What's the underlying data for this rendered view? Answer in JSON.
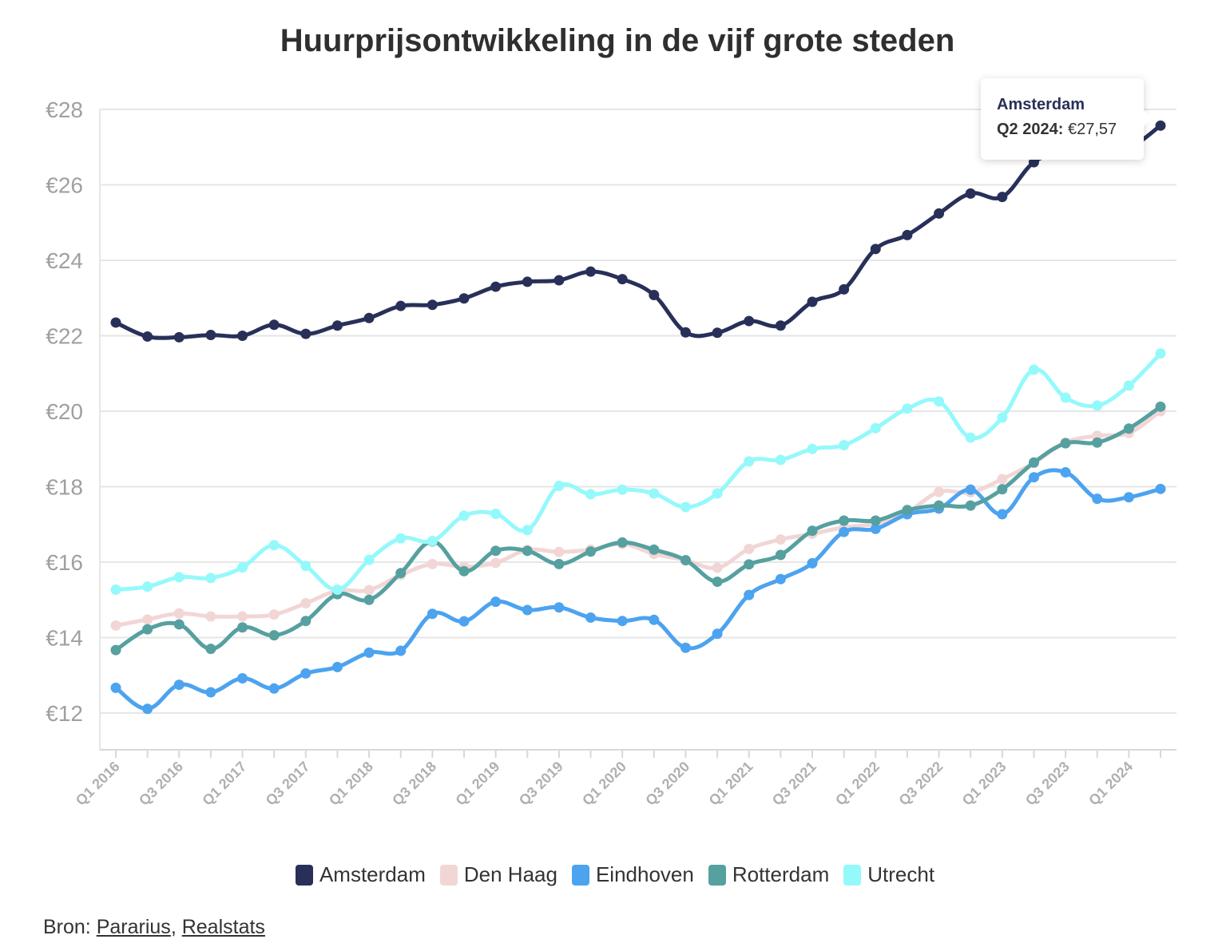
{
  "source": {
    "label": "Bron:",
    "links": [
      "Pararius",
      "Realstats"
    ],
    "separator": ","
  },
  "tooltip": {
    "series": "Amsterdam",
    "period": "Q2 2024:",
    "value": "€27,57"
  },
  "chart_data": {
    "type": "line",
    "title": "Huurprijsontwikkeling in de vijf grote steden",
    "xlabel": "",
    "ylabel": "",
    "ylim": [
      11,
      28
    ],
    "yticks": [
      12,
      14,
      16,
      18,
      20,
      22,
      24,
      26,
      28
    ],
    "ytick_labels": [
      "€12",
      "€14",
      "€16",
      "€18",
      "€20",
      "€22",
      "€24",
      "€26",
      "€28"
    ],
    "grid": true,
    "legend_position": "bottom",
    "categories": [
      "Q1 2016",
      "Q2 2016",
      "Q3 2016",
      "Q4 2016",
      "Q1 2017",
      "Q2 2017",
      "Q3 2017",
      "Q4 2017",
      "Q1 2018",
      "Q2 2018",
      "Q3 2018",
      "Q4 2018",
      "Q1 2019",
      "Q2 2019",
      "Q3 2019",
      "Q4 2019",
      "Q1 2020",
      "Q2 2020",
      "Q3 2020",
      "Q4 2020",
      "Q1 2021",
      "Q2 2021",
      "Q3 2021",
      "Q4 2021",
      "Q1 2022",
      "Q2 2022",
      "Q3 2022",
      "Q4 2022",
      "Q1 2023",
      "Q2 2023",
      "Q3 2023",
      "Q4 2023",
      "Q1 2024",
      "Q2 2024"
    ],
    "xtick_labels": [
      "Q1 2016",
      "Q3 2016",
      "Q1 2017",
      "Q3 2017",
      "Q1 2018",
      "Q3 2018",
      "Q1 2019",
      "Q3 2019",
      "Q1 2020",
      "Q3 2020",
      "Q1 2021",
      "Q3 2021",
      "Q1 2022",
      "Q3 2022",
      "Q1 2023",
      "Q3 2023",
      "Q1 2024"
    ],
    "series": [
      {
        "name": "Amsterdam",
        "color": "#283059",
        "values": [
          22.35,
          21.98,
          21.96,
          22.02,
          22.0,
          22.29,
          22.05,
          22.27,
          22.47,
          22.79,
          22.82,
          22.99,
          23.3,
          23.43,
          23.47,
          23.7,
          23.5,
          23.08,
          22.09,
          22.08,
          22.39,
          22.27,
          22.9,
          23.23,
          24.3,
          24.67,
          25.24,
          25.77,
          25.68,
          26.6,
          26.9,
          27.1,
          27.0,
          27.57
        ]
      },
      {
        "name": "Den Haag",
        "color": "#f2d6d6",
        "values": [
          14.32,
          14.48,
          14.64,
          14.56,
          14.56,
          14.61,
          14.91,
          15.24,
          15.26,
          15.66,
          15.95,
          15.88,
          15.98,
          16.32,
          16.27,
          16.33,
          16.48,
          16.22,
          16.05,
          15.85,
          16.35,
          16.6,
          16.75,
          16.92,
          17.02,
          17.32,
          17.86,
          17.85,
          18.2,
          18.63,
          19.17,
          19.35,
          19.42,
          20.0
        ]
      },
      {
        "name": "Eindhoven",
        "color": "#4ca3ef",
        "values": [
          12.67,
          12.11,
          12.75,
          12.55,
          12.92,
          12.65,
          13.05,
          13.22,
          13.6,
          13.65,
          14.63,
          14.43,
          14.95,
          14.73,
          14.8,
          14.53,
          14.44,
          14.47,
          13.73,
          14.1,
          15.13,
          15.55,
          15.97,
          16.8,
          16.88,
          17.27,
          17.42,
          17.92,
          17.27,
          18.25,
          18.38,
          17.68,
          17.72,
          17.94
        ]
      },
      {
        "name": "Rotterdam",
        "color": "#56a0a0",
        "values": [
          13.67,
          14.22,
          14.35,
          13.7,
          14.27,
          14.06,
          14.44,
          15.15,
          15.0,
          15.71,
          16.55,
          15.76,
          16.3,
          16.3,
          15.95,
          16.28,
          16.52,
          16.33,
          16.05,
          15.48,
          15.94,
          16.19,
          16.83,
          17.1,
          17.1,
          17.38,
          17.5,
          17.5,
          17.93,
          18.64,
          19.15,
          19.17,
          19.54,
          20.12
        ]
      },
      {
        "name": "Utrecht",
        "color": "#94f9fb",
        "values": [
          15.27,
          15.35,
          15.6,
          15.58,
          15.86,
          16.45,
          15.9,
          15.27,
          16.06,
          16.63,
          16.56,
          17.23,
          17.28,
          16.85,
          18.02,
          17.8,
          17.92,
          17.82,
          17.46,
          17.82,
          18.67,
          18.71,
          19.0,
          19.1,
          19.55,
          20.07,
          20.26,
          19.3,
          19.83,
          21.1,
          20.36,
          20.15,
          20.68,
          21.53
        ]
      }
    ]
  }
}
